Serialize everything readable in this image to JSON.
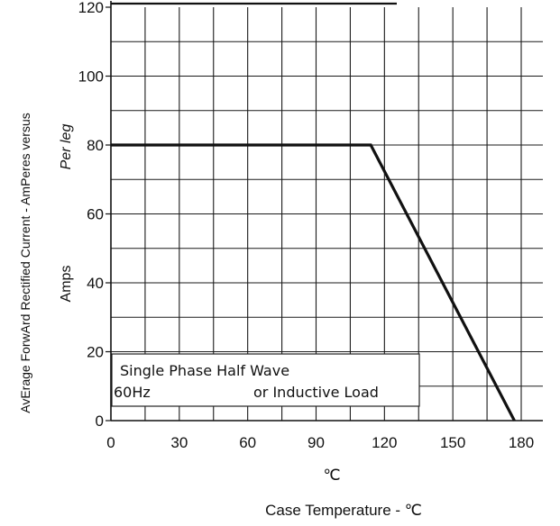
{
  "chart_data": {
    "type": "line",
    "title": "",
    "ylabel": "AvErage ForwArd Rectified Current - AmPeres versus",
    "ylabel2": "Per leg",
    "ylabel3": "Amps",
    "xlabel": "Case Temperature - ℃",
    "x_unit_symbol": "℃",
    "xlim": [
      0,
      180
    ],
    "ylim": [
      0,
      120
    ],
    "x_ticks": [
      0,
      30,
      60,
      90,
      120,
      150,
      180
    ],
    "y_ticks": [
      0,
      20,
      40,
      60,
      80,
      100,
      120
    ],
    "grid": true,
    "series": [
      {
        "x": [
          0,
          114,
          177
        ],
        "y": [
          80,
          80,
          0
        ]
      }
    ],
    "annotations": {
      "line1": "Single Phase Half Wave",
      "line2_left": "60Hz",
      "line2_right": "or Inductive Load"
    }
  }
}
